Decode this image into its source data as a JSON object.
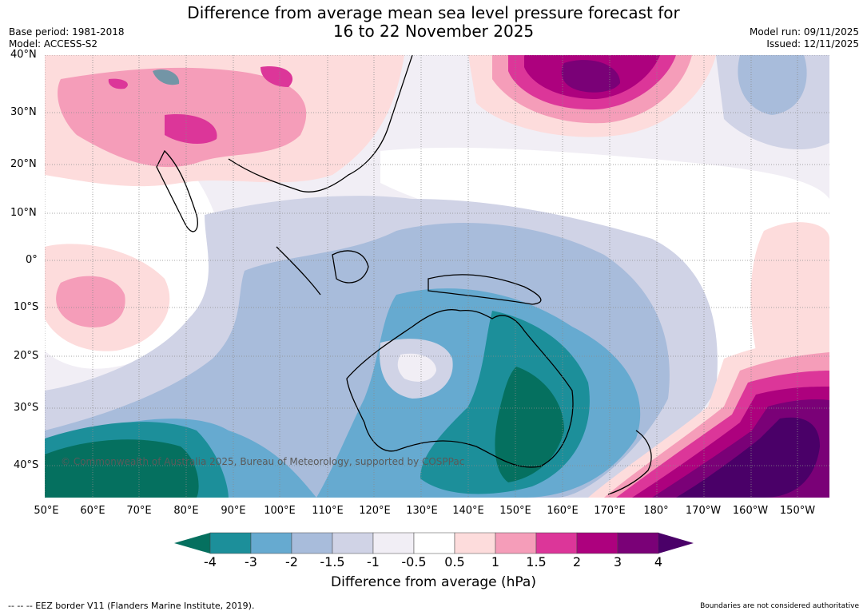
{
  "title": {
    "line1": "Difference from average mean sea level pressure forecast for",
    "line2": "16 to 22 November 2025"
  },
  "meta": {
    "base_period": "Base period: 1981-2018",
    "model": "Model: ACCESS-S2",
    "model_run": "Model run: 09/11/2025",
    "issued": "Issued: 12/11/2025"
  },
  "axes": {
    "lat_labels": [
      "40°N",
      "30°N",
      "20°N",
      "10°N",
      "0°",
      "10°S",
      "20°S",
      "30°S",
      "40°S"
    ],
    "lon_labels": [
      "50°E",
      "60°E",
      "70°E",
      "80°E",
      "90°E",
      "100°E",
      "110°E",
      "120°E",
      "130°E",
      "140°E",
      "150°E",
      "160°E",
      "170°E",
      "180°",
      "170°W",
      "160°W",
      "150°W"
    ]
  },
  "colorbar": {
    "ticks": [
      "-4",
      "-3",
      "-2",
      "-1.5",
      "-1",
      "-0.5",
      "0.5",
      "1",
      "1.5",
      "2",
      "3",
      "4"
    ],
    "colors": [
      "#05705f",
      "#1c8f9a",
      "#66aad0",
      "#a8bcdb",
      "#d0d3e6",
      "#f1eef5",
      "#ffffff",
      "#fddcdc",
      "#f59db9",
      "#dc3699",
      "#ad017e",
      "#7a0177",
      "#4a0068"
    ],
    "label": "Difference from average (hPa)"
  },
  "copyright": "© Commonwealth of Australia 2025, Bureau of Meteorology, supported by COSPPac",
  "eez_note": "--  --  -- EEZ border V11 (Flanders Marine Institute, 2019).",
  "disclaimer": "Boundaries are not considered authoritative"
}
